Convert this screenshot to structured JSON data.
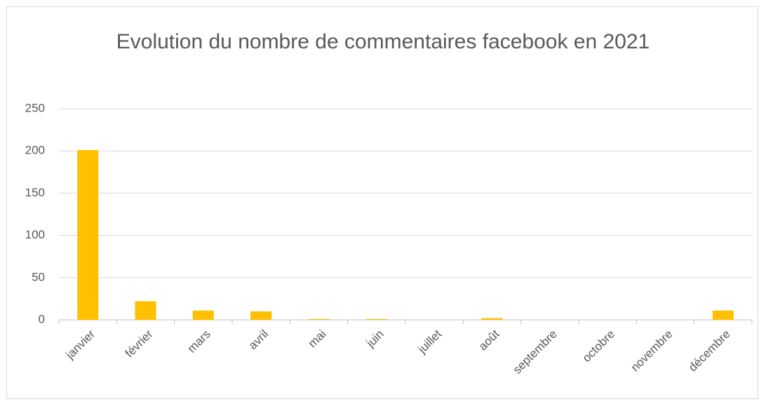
{
  "chart_data": {
    "type": "bar",
    "title": "Evolution du nombre de commentaires facebook en 2021",
    "categories": [
      "janvier",
      "février",
      "mars",
      "avril",
      "mai",
      "juin",
      "juillet",
      "août",
      "septembre",
      "octobre",
      "novembre",
      "décembre"
    ],
    "values": [
      201,
      22,
      11,
      10,
      1,
      1,
      0,
      2,
      0,
      0,
      0,
      11
    ],
    "color": "#ffc000",
    "ylim": [
      0,
      250
    ],
    "yticks": [
      0,
      50,
      100,
      150,
      200,
      250
    ],
    "grid": true
  }
}
